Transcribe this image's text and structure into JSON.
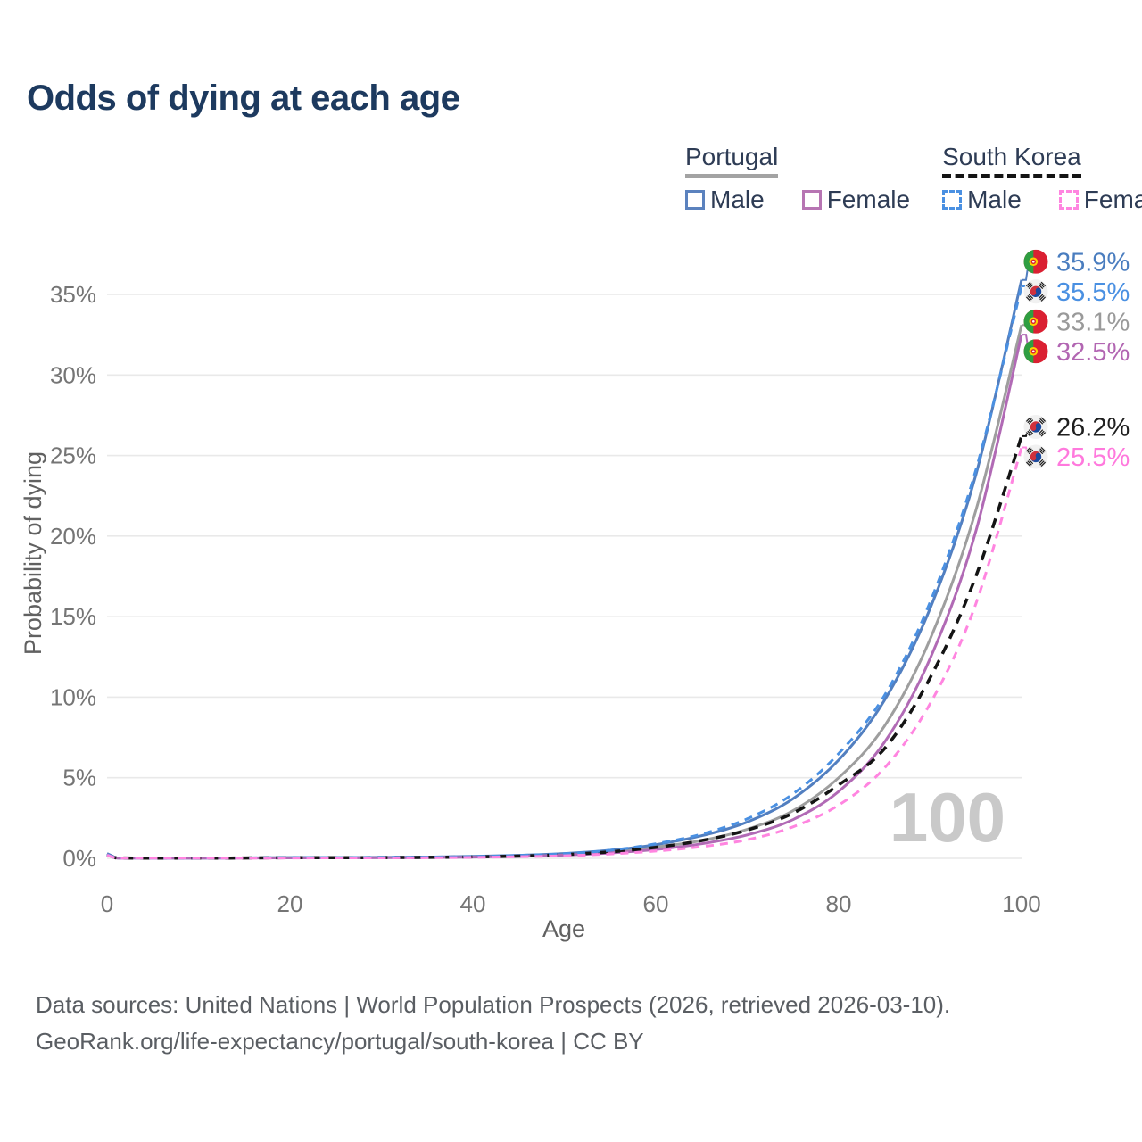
{
  "title": "Odds of dying at each age",
  "legend": {
    "groups": [
      {
        "label": "Portugal",
        "line_style": "solid",
        "underline_color": "#a3a3a3",
        "items": [
          {
            "label": "Male",
            "color": "#5b82be",
            "dashed": false
          },
          {
            "label": "Female",
            "color": "#b775b3",
            "dashed": false
          }
        ]
      },
      {
        "label": "South Korea",
        "line_style": "dashed",
        "underline_color": "#141414",
        "items": [
          {
            "label": "Male",
            "color": "#4a90e2",
            "dashed": true
          },
          {
            "label": "Female",
            "color": "#ff85e0",
            "dashed": true
          }
        ]
      }
    ]
  },
  "chart_data": {
    "type": "line",
    "title": "Odds of dying at each age",
    "xlabel": "Age",
    "ylabel": "Probability of dying",
    "xlim": [
      0,
      100
    ],
    "ylim": [
      0,
      37
    ],
    "xticks": [
      0,
      20,
      40,
      60,
      80,
      100
    ],
    "yticks": [
      0,
      5,
      10,
      15,
      20,
      25,
      30,
      35
    ],
    "ytick_suffix": "%",
    "grid": "horizontal",
    "grid_color": "#e9e9e9",
    "watermark": "100",
    "x": [
      0,
      1,
      2,
      5,
      10,
      15,
      20,
      25,
      30,
      35,
      40,
      45,
      50,
      55,
      60,
      65,
      70,
      75,
      80,
      85,
      90,
      95,
      100
    ],
    "series": [
      {
        "id": "portugal-all",
        "name": "Portugal - All",
        "country": "portugal",
        "sex": "all",
        "color": "#9e9e9e",
        "dash": null,
        "width": 3,
        "values": [
          0.28,
          0.03,
          0.02,
          0.01,
          0.01,
          0.02,
          0.04,
          0.04,
          0.05,
          0.06,
          0.1,
          0.15,
          0.25,
          0.42,
          0.7,
          1.1,
          1.8,
          2.95,
          5.0,
          8.2,
          13.6,
          21.6,
          33.1
        ],
        "end_label": "33.1%",
        "label_color": "#9a9a9a"
      },
      {
        "id": "portugal-male",
        "name": "Portugal - Male",
        "country": "portugal",
        "sex": "male",
        "color": "#527fc0",
        "dash": null,
        "width": 3,
        "values": [
          0.3,
          0.04,
          0.02,
          0.02,
          0.01,
          0.03,
          0.05,
          0.05,
          0.06,
          0.08,
          0.12,
          0.19,
          0.3,
          0.5,
          0.85,
          1.4,
          2.25,
          3.7,
          6.1,
          9.8,
          15.5,
          23.8,
          35.9
        ],
        "end_label": "35.9%",
        "label_color": "#4a7dbf"
      },
      {
        "id": "portugal-female",
        "name": "Portugal - Female",
        "country": "portugal",
        "sex": "female",
        "color": "#b16ab5",
        "dash": null,
        "width": 3,
        "values": [
          0.26,
          0.03,
          0.02,
          0.01,
          0.01,
          0.02,
          0.03,
          0.03,
          0.04,
          0.05,
          0.08,
          0.12,
          0.2,
          0.33,
          0.55,
          0.9,
          1.45,
          2.4,
          4.15,
          7.2,
          12.4,
          20.3,
          32.5
        ],
        "end_label": "32.5%",
        "label_color": "#b266b2"
      },
      {
        "id": "south-korea-all",
        "name": "South Korea - All",
        "country": "south-korea",
        "sex": "all",
        "color": "#141414",
        "dash": "11 8",
        "width": 3.5,
        "values": [
          0.22,
          0.03,
          0.02,
          0.01,
          0.01,
          0.02,
          0.04,
          0.04,
          0.05,
          0.06,
          0.09,
          0.14,
          0.23,
          0.4,
          0.68,
          1.1,
          1.75,
          2.8,
          4.55,
          6.8,
          11.2,
          17.5,
          26.2
        ],
        "end_label": "26.2%",
        "label_color": "#1f1f1f"
      },
      {
        "id": "south-korea-male",
        "name": "South Korea - Male",
        "country": "south-korea",
        "sex": "male",
        "color": "#4a90e2",
        "dash": "9 7",
        "width": 3,
        "values": [
          0.25,
          0.03,
          0.02,
          0.01,
          0.01,
          0.03,
          0.05,
          0.05,
          0.06,
          0.08,
          0.11,
          0.18,
          0.29,
          0.5,
          0.9,
          1.5,
          2.45,
          4.0,
          6.5,
          10.1,
          15.9,
          24.1,
          35.5
        ],
        "end_label": "35.5%",
        "label_color": "#4a90e2"
      },
      {
        "id": "south-korea-female",
        "name": "South Korea - Female",
        "country": "south-korea",
        "sex": "female",
        "color": "#ff85e0",
        "dash": "9 7",
        "width": 3,
        "values": [
          0.2,
          0.02,
          0.01,
          0.01,
          0.01,
          0.01,
          0.02,
          0.03,
          0.03,
          0.04,
          0.06,
          0.1,
          0.16,
          0.27,
          0.45,
          0.72,
          1.15,
          1.95,
          3.3,
          5.6,
          9.6,
          15.8,
          25.5
        ],
        "end_label": "25.5%",
        "label_color": "#ff79dd"
      }
    ]
  },
  "footer": {
    "line1": "Data sources: United Nations | World Population Prospects (2026, retrieved 2026-03-10).",
    "line2": "GeoRank.org/life-expectancy/portugal/south-korea | CC BY"
  }
}
